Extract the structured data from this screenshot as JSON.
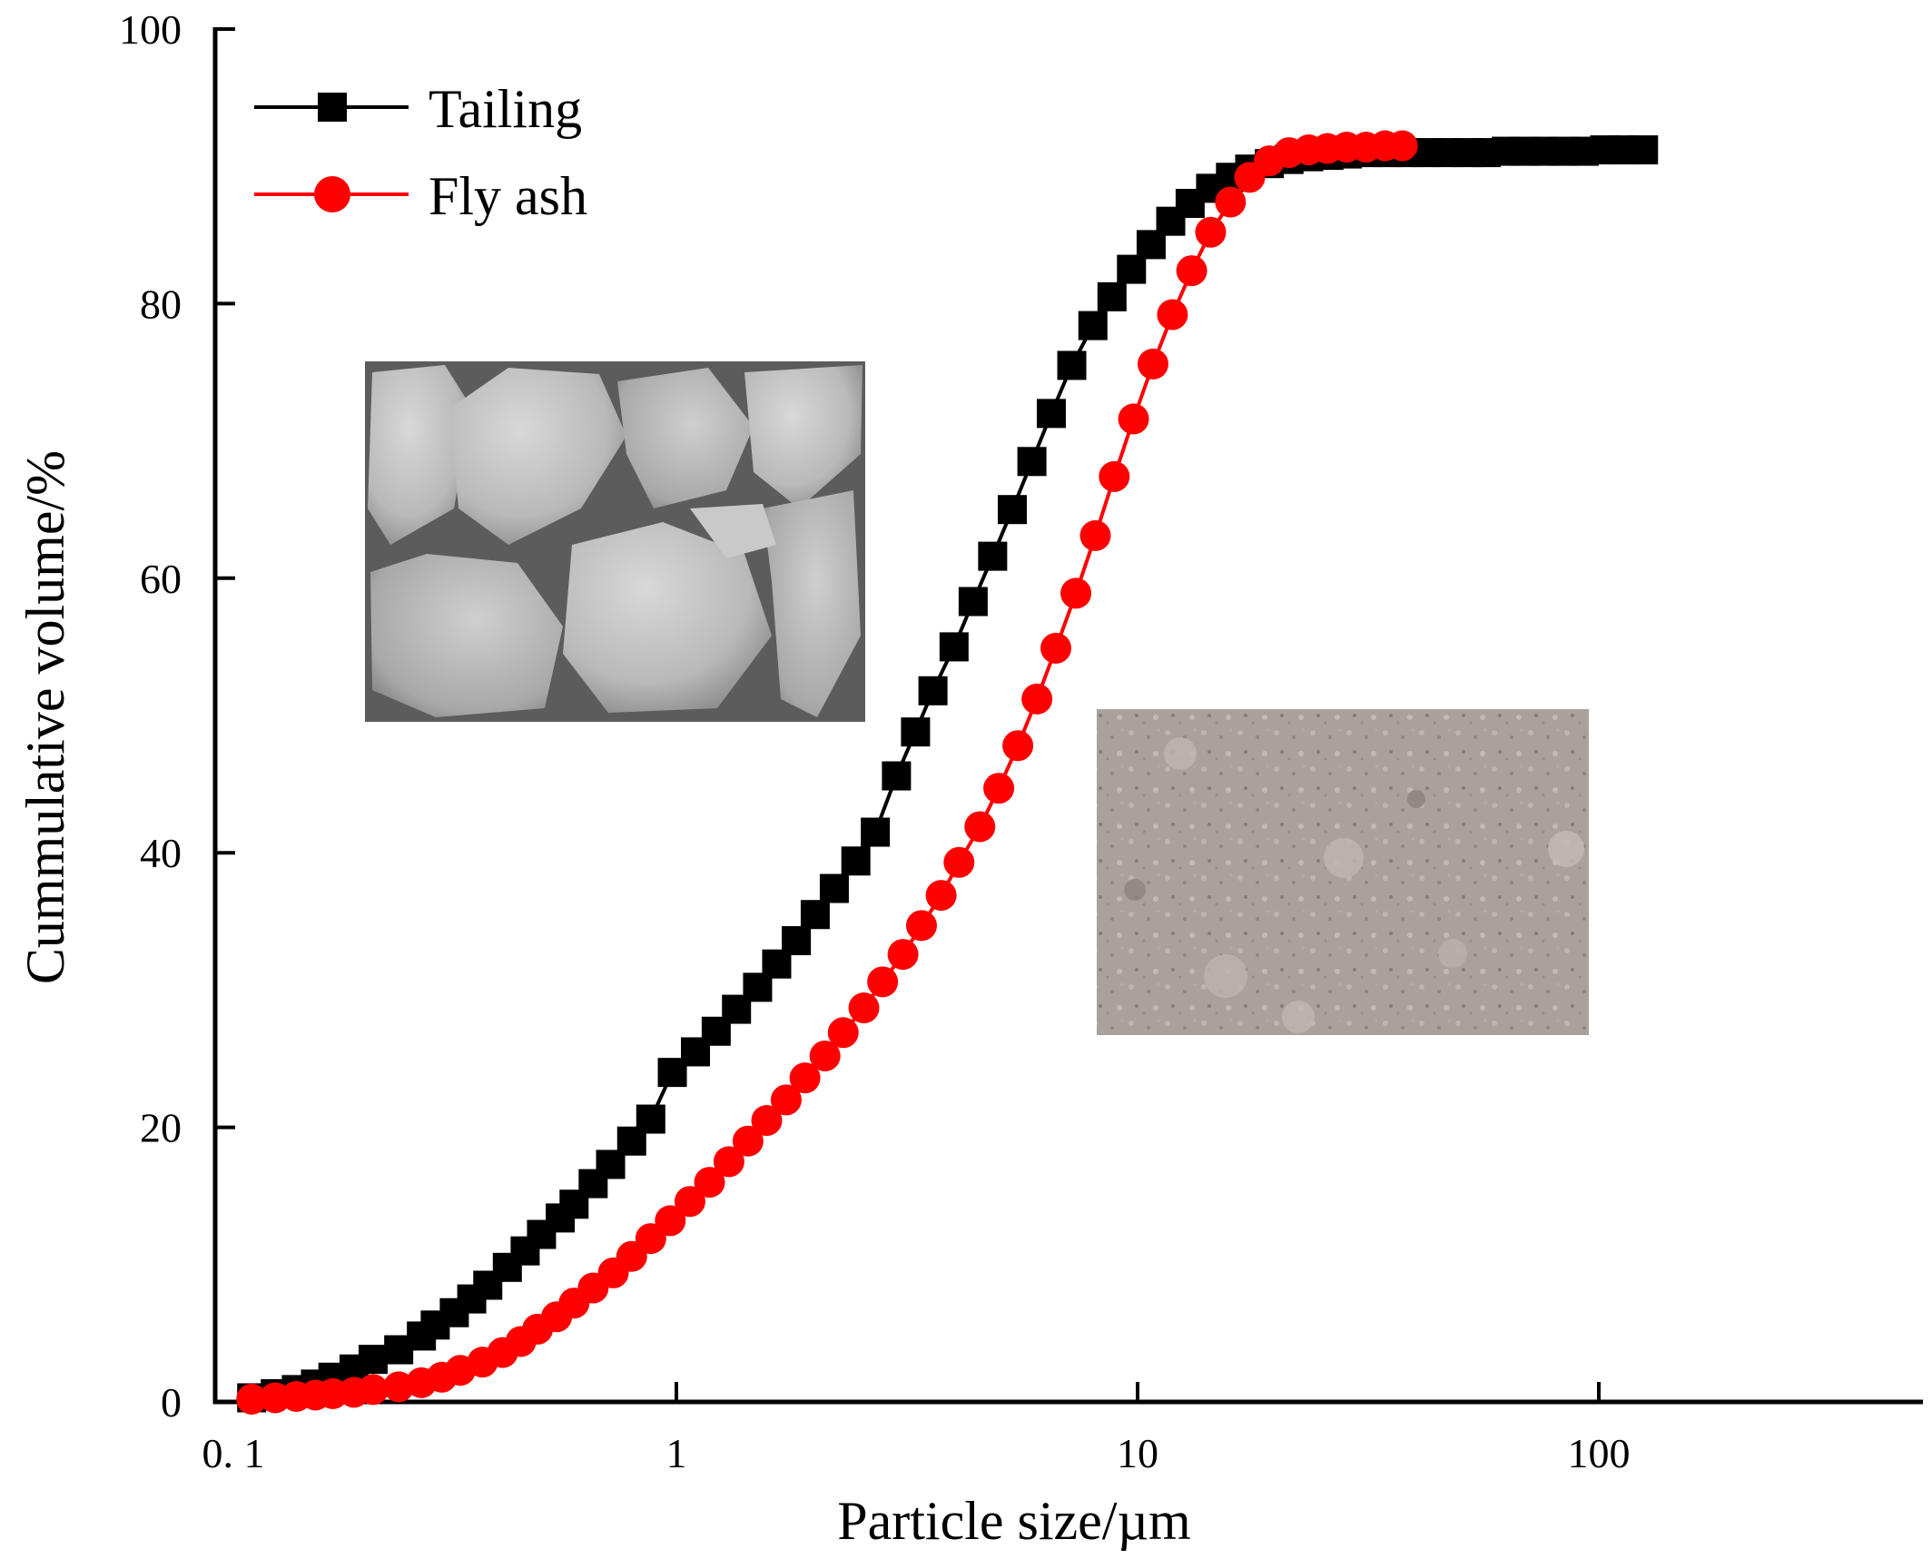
{
  "chart_data": {
    "type": "line",
    "xlabel": "Particle size/µm",
    "ylabel": "Cummulative volume/%",
    "x_scale": "log",
    "xlim": [
      0.1,
      500
    ],
    "ylim": [
      0,
      100
    ],
    "x_ticks": [
      0.1,
      1,
      10,
      100
    ],
    "x_tick_labels": [
      "0. 1",
      "1",
      "10",
      "100"
    ],
    "y_ticks": [
      0,
      20,
      40,
      60,
      80,
      100
    ],
    "y_tick_labels": [
      "0",
      "20",
      "40",
      "60",
      "80",
      "100"
    ],
    "legend_position": "top-left",
    "series": [
      {
        "name": "Tailing",
        "color": "#000000",
        "marker": "square",
        "x": [
          0.12,
          0.135,
          0.15,
          0.165,
          0.18,
          0.2,
          0.22,
          0.25,
          0.28,
          0.3,
          0.33,
          0.36,
          0.39,
          0.43,
          0.47,
          0.51,
          0.56,
          0.6,
          0.66,
          0.72,
          0.8,
          0.88,
          0.98,
          1.1,
          1.22,
          1.35,
          1.5,
          1.65,
          1.82,
          2.0,
          2.2,
          2.45,
          2.7,
          3.0,
          3.3,
          3.6,
          4.0,
          4.4,
          4.85,
          5.35,
          5.9,
          6.5,
          7.2,
          8.0,
          8.8,
          9.7,
          10.7,
          11.8,
          13.0,
          14.4,
          15.9,
          17.5,
          19.3,
          21.3,
          23.5,
          26,
          28.5,
          31.5,
          35,
          38.5,
          42.5,
          47,
          52,
          57,
          63,
          69,
          76,
          84,
          93,
          103,
          113,
          125
        ],
        "y": [
          0.3,
          0.6,
          0.9,
          1.3,
          1.8,
          2.4,
          3.1,
          3.8,
          4.8,
          5.6,
          6.5,
          7.5,
          8.5,
          9.8,
          11.0,
          12.2,
          13.4,
          14.4,
          15.9,
          17.3,
          19.0,
          20.6,
          24.0,
          25.5,
          27.0,
          28.6,
          30.2,
          31.9,
          33.6,
          35.5,
          37.4,
          39.4,
          41.5,
          45.6,
          48.8,
          51.8,
          55.0,
          58.3,
          61.6,
          65.0,
          68.5,
          72.0,
          75.5,
          78.4,
          80.5,
          82.5,
          84.3,
          86.0,
          87.3,
          88.4,
          89.2,
          89.8,
          90.2,
          90.5,
          90.7,
          90.8,
          90.9,
          91.0,
          91.0,
          91.0,
          91.0,
          91.0,
          91.0,
          91.0,
          91.1,
          91.1,
          91.1,
          91.1,
          91.1,
          91.2,
          91.2,
          91.2
        ]
      },
      {
        "name": "Fly ash",
        "color": "#ff0000",
        "marker": "circle",
        "x": [
          0.12,
          0.135,
          0.15,
          0.165,
          0.18,
          0.2,
          0.22,
          0.25,
          0.28,
          0.31,
          0.34,
          0.38,
          0.42,
          0.46,
          0.5,
          0.55,
          0.6,
          0.66,
          0.73,
          0.8,
          0.88,
          0.97,
          1.07,
          1.18,
          1.3,
          1.43,
          1.57,
          1.73,
          1.9,
          2.1,
          2.3,
          2.55,
          2.8,
          3.1,
          3.4,
          3.75,
          4.1,
          4.55,
          5.0,
          5.5,
          6.05,
          6.65,
          7.35,
          8.1,
          8.9,
          9.8,
          10.8,
          11.9,
          13.1,
          14.4,
          15.9,
          17.5,
          19.3,
          21.3,
          23.5,
          25.8,
          28.4,
          31.3,
          34.4,
          37.5
        ],
        "y": [
          0.2,
          0.3,
          0.4,
          0.5,
          0.6,
          0.7,
          0.9,
          1.1,
          1.4,
          1.8,
          2.3,
          2.9,
          3.6,
          4.4,
          5.3,
          6.2,
          7.2,
          8.3,
          9.4,
          10.6,
          11.9,
          13.2,
          14.6,
          16.0,
          17.5,
          19.0,
          20.5,
          22.0,
          23.6,
          25.2,
          26.9,
          28.7,
          30.6,
          32.6,
          34.7,
          36.9,
          39.3,
          41.9,
          44.7,
          47.8,
          51.2,
          54.9,
          58.9,
          63.1,
          67.4,
          71.6,
          75.6,
          79.2,
          82.4,
          85.2,
          87.4,
          89.2,
          90.4,
          91.0,
          91.2,
          91.3,
          91.4,
          91.4,
          91.5,
          91.5
        ]
      }
    ],
    "inset_photos": [
      "tailing-photo",
      "fly-ash-photo"
    ]
  }
}
